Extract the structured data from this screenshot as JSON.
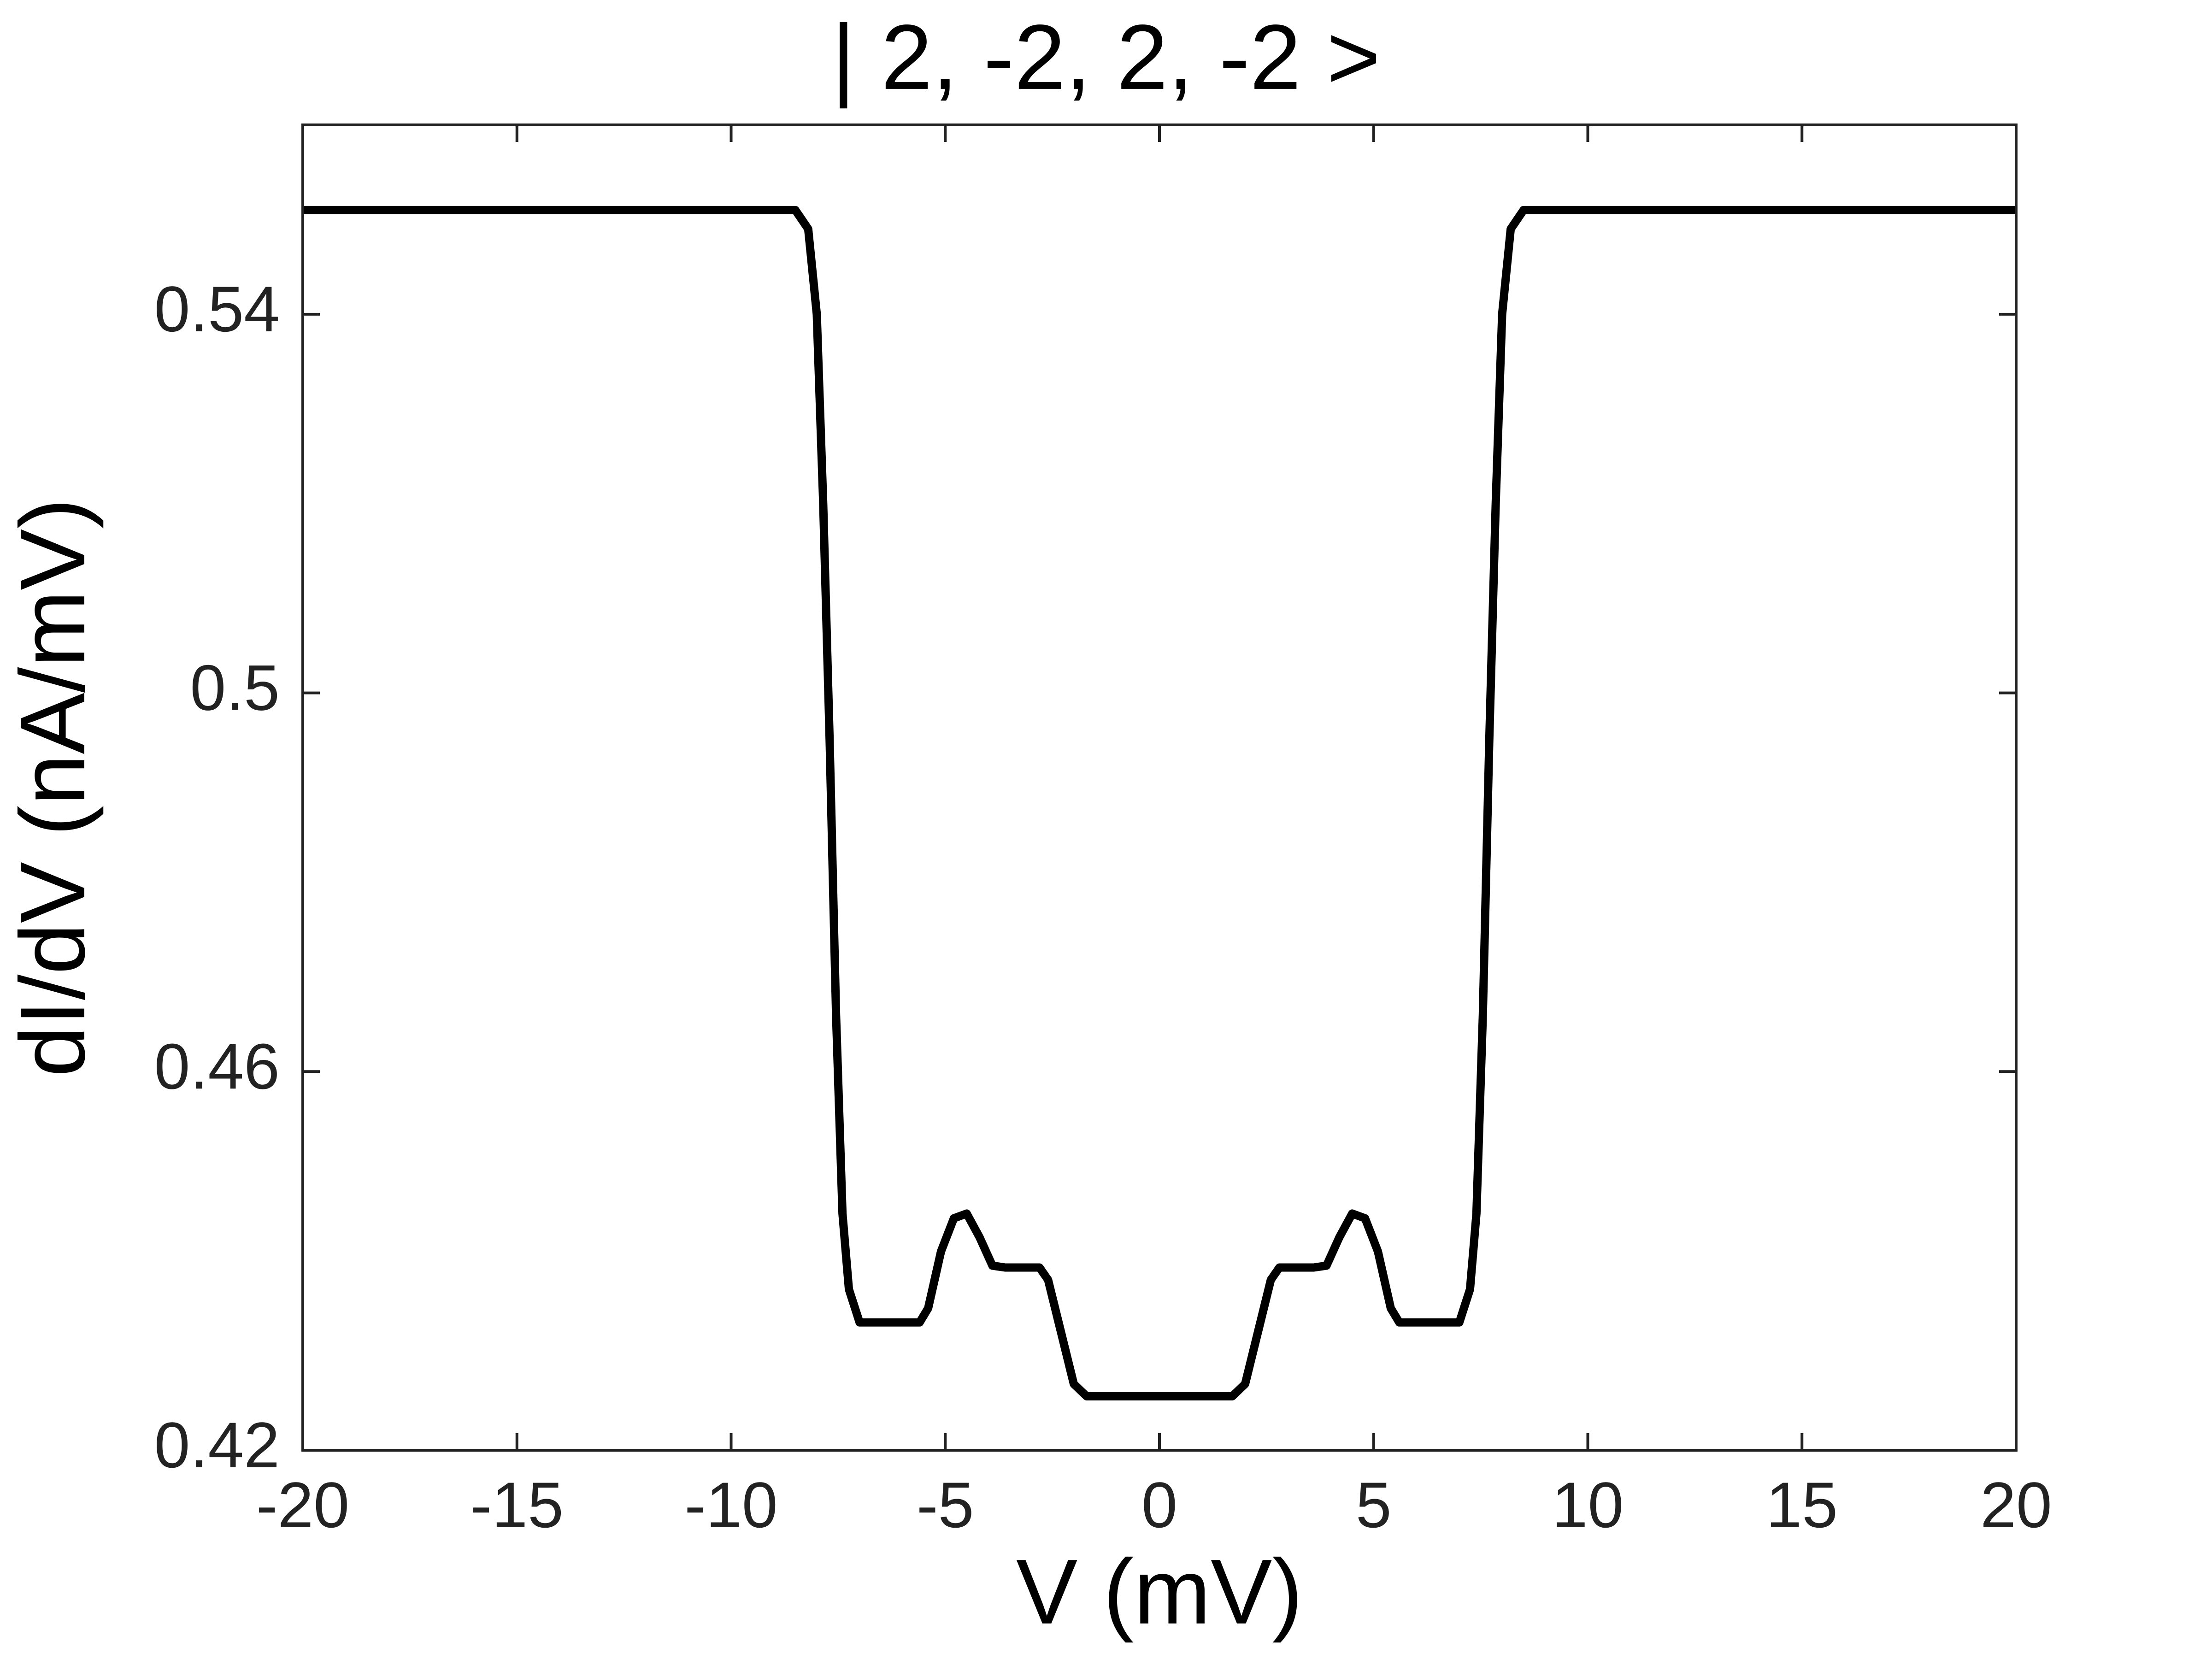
{
  "chart_data": {
    "type": "line",
    "title": "| 2, -2, 2, -2 >",
    "x_label": "V (mV)",
    "y_label": "dI/dV (nA/mV)",
    "series": [
      {
        "color": "#000000",
        "x": [
          -20,
          -8.5,
          -8.2,
          -8.0,
          -7.85,
          -7.7,
          -7.55,
          -7.4,
          -7.25,
          -7.0,
          -5.6,
          -5.4,
          -5.1,
          -4.8,
          -4.5,
          -4.2,
          -3.9,
          -3.6,
          -2.8,
          -2.6,
          -2.3,
          -2.0,
          -1.7,
          0,
          1.7,
          2.0,
          2.3,
          2.6,
          2.8,
          3.6,
          3.9,
          4.2,
          4.5,
          4.8,
          5.1,
          5.4,
          5.6,
          7.0,
          7.25,
          7.4,
          7.55,
          7.7,
          7.85,
          8.0,
          8.2,
          8.5,
          20
        ],
        "values": [
          0.551,
          0.551,
          0.549,
          0.54,
          0.52,
          0.495,
          0.466,
          0.445,
          0.437,
          0.4335,
          0.4335,
          0.435,
          0.441,
          0.4445,
          0.445,
          0.4425,
          0.4395,
          0.4393,
          0.4393,
          0.438,
          0.4325,
          0.427,
          0.4257,
          0.4257,
          0.4257,
          0.427,
          0.4325,
          0.438,
          0.4393,
          0.4393,
          0.4395,
          0.4425,
          0.445,
          0.4445,
          0.441,
          0.435,
          0.4335,
          0.4335,
          0.437,
          0.445,
          0.466,
          0.495,
          0.52,
          0.54,
          0.549,
          0.551,
          0.551
        ]
      }
    ],
    "xlim": [
      -20,
      20
    ],
    "xticks": [
      -20,
      -15,
      -10,
      -5,
      0,
      5,
      10,
      15,
      20
    ],
    "ylim": [
      0.42,
      0.56
    ],
    "yticks": [
      0.42,
      0.46,
      0.5,
      0.54
    ],
    "grid": false
  }
}
